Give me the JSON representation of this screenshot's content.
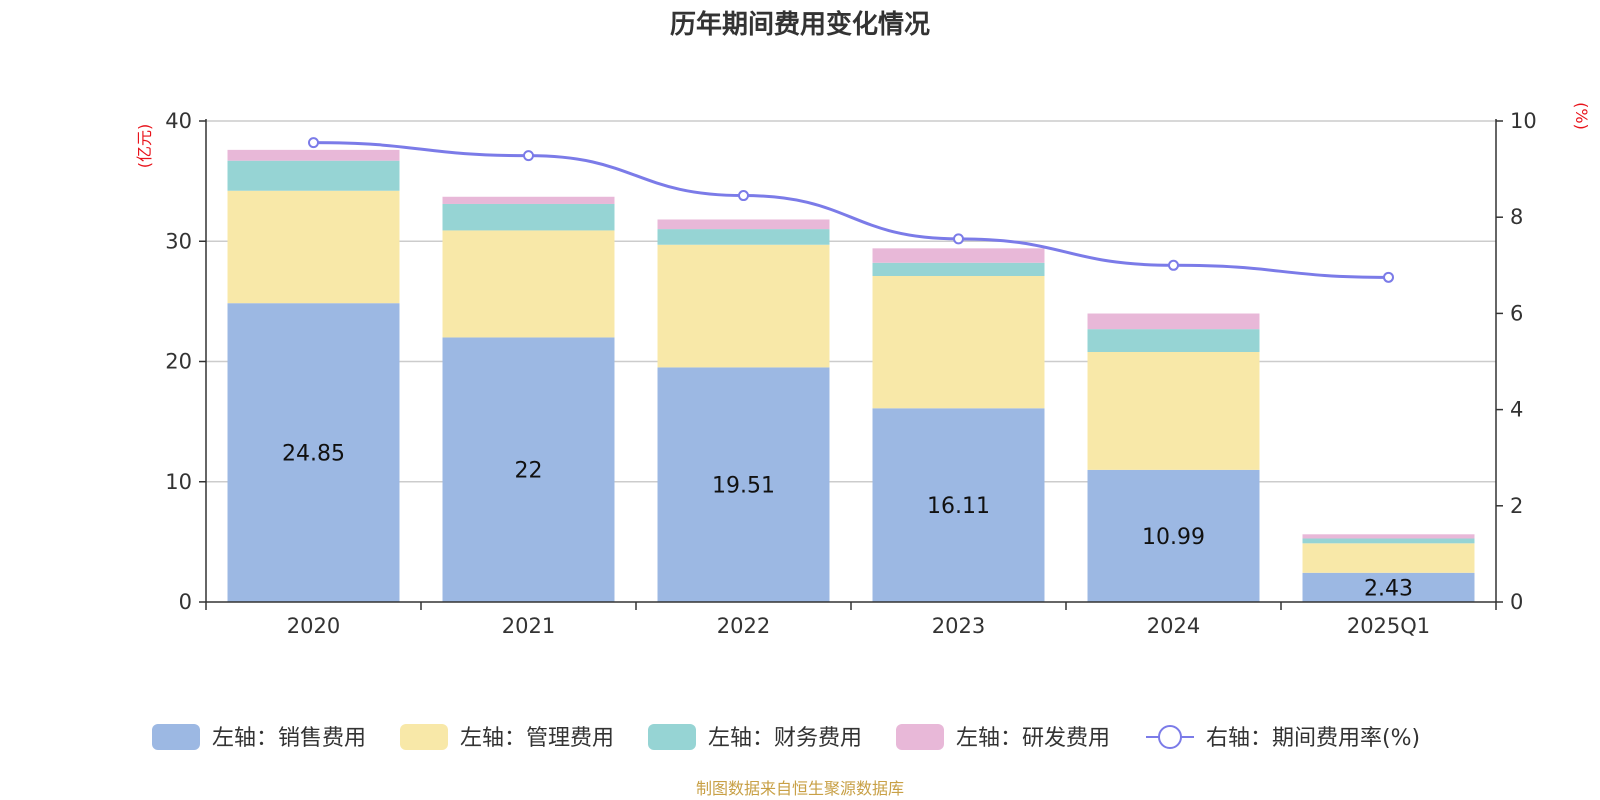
{
  "chart_data": {
    "type": "bar",
    "title": "历年期间费用变化情况",
    "categories": [
      "2020",
      "2021",
      "2022",
      "2023",
      "2024",
      "2025Q1"
    ],
    "left_axis": {
      "unit": "(亿元)",
      "ylim": [
        0,
        40
      ],
      "ticks": [
        0,
        10,
        20,
        30,
        40
      ]
    },
    "right_axis": {
      "unit": "(%)",
      "ylim": [
        0,
        10
      ],
      "ticks": [
        0,
        2,
        4,
        6,
        8,
        10
      ]
    },
    "series": [
      {
        "name": "左轴：销售费用",
        "type": "bar",
        "axis": "left",
        "color": "#9cb8e3",
        "values": [
          24.85,
          22,
          19.51,
          16.11,
          10.99,
          2.43
        ],
        "labels": [
          "24.85",
          "22",
          "19.51",
          "16.11",
          "10.99",
          "2.43"
        ]
      },
      {
        "name": "左轴：管理费用",
        "type": "bar",
        "axis": "left",
        "color": "#f8e8a8",
        "values": [
          9.35,
          8.9,
          10.2,
          11.0,
          9.8,
          2.45
        ]
      },
      {
        "name": "左轴：财务费用",
        "type": "bar",
        "axis": "left",
        "color": "#96d4d4",
        "values": [
          2.5,
          2.2,
          1.3,
          1.1,
          1.9,
          0.4
        ]
      },
      {
        "name": "左轴：研发费用",
        "type": "bar",
        "axis": "left",
        "color": "#e8b8d8",
        "values": [
          0.9,
          0.6,
          0.8,
          1.2,
          1.3,
          0.35
        ]
      },
      {
        "name": "右轴：期间费用率(%)",
        "type": "line",
        "axis": "right",
        "color": "#7b7be8",
        "values": [
          9.55,
          9.28,
          8.45,
          7.55,
          7.0,
          6.75
        ]
      }
    ],
    "legend_position": "bottom",
    "grid": true
  },
  "source": "制图数据来自恒生聚源数据库"
}
